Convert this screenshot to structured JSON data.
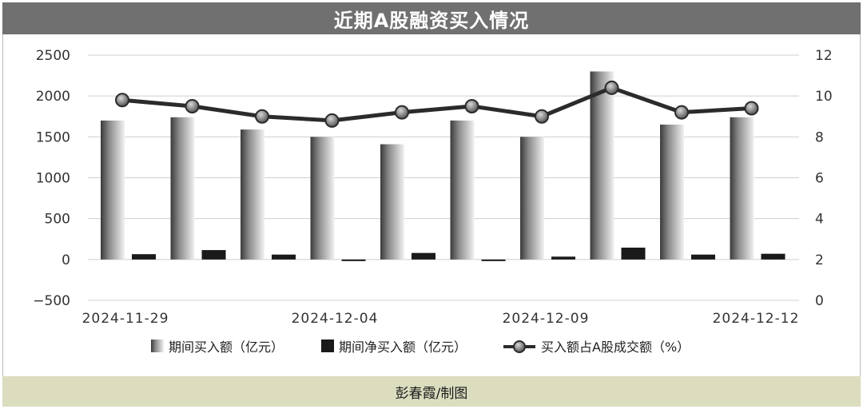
{
  "title": "近期A股融资买入情况",
  "credit": "彭春霞/制图",
  "chart_data": {
    "type": "bar",
    "categories": [
      "2024-11-29",
      "",
      "",
      "2024-12-04",
      "",
      "",
      "2024-12-09",
      "",
      "",
      "2024-12-12"
    ],
    "x_tick_labels": [
      "2024-11-29",
      "2024-12-04",
      "2024-12-09",
      "2024-12-12"
    ],
    "left_axis": {
      "ylim": [
        -500,
        2500
      ],
      "ticks": [
        "2500",
        "2000",
        "1500",
        "1000",
        "500",
        "0",
        "−500"
      ]
    },
    "right_axis": {
      "ylim": [
        0,
        12
      ],
      "ticks": [
        "12",
        "10",
        "8",
        "6",
        "4",
        "2",
        "0"
      ]
    },
    "grid": true,
    "legend_position": "bottom",
    "series": [
      {
        "name": "期间买入额（亿元）",
        "type": "bar",
        "axis": "left",
        "color": "#6e6e6e",
        "values": [
          1700,
          1740,
          1590,
          1500,
          1410,
          1700,
          1500,
          2300,
          1650,
          1740
        ]
      },
      {
        "name": "期间净买入额（亿元）",
        "type": "bar",
        "axis": "left",
        "color": "#1a1a1a",
        "values": [
          65,
          115,
          60,
          -10,
          80,
          -10,
          35,
          145,
          60,
          70
        ]
      },
      {
        "name": "买入额占A股成交额（%）",
        "type": "line",
        "axis": "right",
        "color": "#2b2b2b",
        "values": [
          9.8,
          9.5,
          9.0,
          8.8,
          9.2,
          9.5,
          9.0,
          10.4,
          9.2,
          9.4
        ]
      }
    ]
  }
}
